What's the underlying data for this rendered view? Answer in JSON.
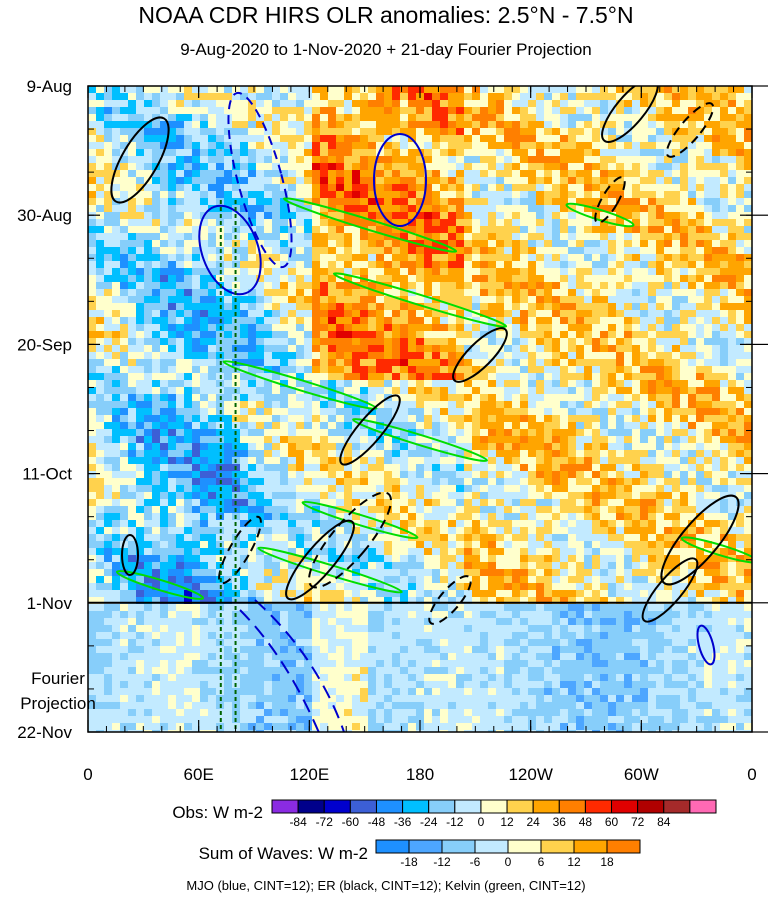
{
  "title": "NOAA CDR HIRS OLR anomalies: 2.5°N - 7.5°N",
  "subtitle": "9-Aug-2020 to 1-Nov-2020 + 21-day Fourier Projection",
  "footer": "MJO (blue, CINT=12); ER (black, CINT=12); Kelvin (green, CINT=12)",
  "chart_data": {
    "type": "heatmap",
    "title": "NOAA CDR HIRS OLR anomalies: 2.5°N - 7.5°N",
    "subtitle": "9-Aug-2020 to 1-Nov-2020 + 21-day Fourier Projection",
    "x_axis": {
      "quantity": "longitude",
      "range": [
        "0",
        "0 (360)"
      ],
      "ticks": [
        "0",
        "60E",
        "120E",
        "180",
        "120W",
        "60W",
        "0"
      ],
      "tick_degrees": [
        0,
        60,
        120,
        180,
        240,
        300,
        360
      ]
    },
    "y_axis": {
      "quantity": "date",
      "range": [
        "9-Aug-2020",
        "22-Nov-2020"
      ],
      "direction": "downward",
      "ticks": [
        "9-Aug",
        "30-Aug",
        "20-Sep",
        "11-Oct",
        "1-Nov",
        "22-Nov"
      ],
      "tick_dates": [
        "2020-08-09",
        "2020-08-30",
        "2020-09-20",
        "2020-10-11",
        "2020-11-01",
        "2020-11-22"
      ]
    },
    "projection_label": [
      "Fourier",
      "Projection"
    ],
    "projection_start": "1-Nov",
    "observed_colorbar": {
      "title": "Obs: W m-2",
      "levels": [
        -84,
        -72,
        -60,
        -48,
        -36,
        -24,
        -12,
        0,
        12,
        24,
        36,
        48,
        60,
        72,
        84
      ],
      "labels": [
        "-84",
        "-72",
        "-60",
        "-48",
        "-36",
        "-24",
        "-12",
        "0",
        "12",
        "24",
        "36",
        "48",
        "60",
        "72",
        "84"
      ],
      "colors": [
        "#8a2be2",
        "#00008b",
        "#0000cd",
        "#3c5fd6",
        "#1e90ff",
        "#00bfff",
        "#87cefa",
        "#c2eaff",
        "#ffffcc",
        "#ffd24d",
        "#ffa500",
        "#ff7f00",
        "#ff2a00",
        "#e00000",
        "#b00000",
        "#a52a2a",
        "#ff69b4"
      ]
    },
    "waves_colorbar": {
      "title": "Sum of Waves: W m-2",
      "levels": [
        -18,
        -12,
        -6,
        0,
        6,
        12,
        18
      ],
      "labels": [
        "-18",
        "-12",
        "-6",
        "0",
        "6",
        "12",
        "18"
      ],
      "colors": [
        "#1e90ff",
        "#4da6ff",
        "#87cefa",
        "#c2eaff",
        "#ffffcc",
        "#ffd24d",
        "#ffa500",
        "#ff7f00"
      ]
    },
    "contour_overlays": [
      {
        "name": "MJO",
        "color": "#0000cd",
        "cint": 12
      },
      {
        "name": "ER",
        "color": "#000000",
        "cint": 12
      },
      {
        "name": "Kelvin",
        "color": "#00dd00",
        "cint": 12
      }
    ],
    "reference_longitudes_dashed": [
      "~72E",
      "~80E"
    ],
    "grid": false
  }
}
